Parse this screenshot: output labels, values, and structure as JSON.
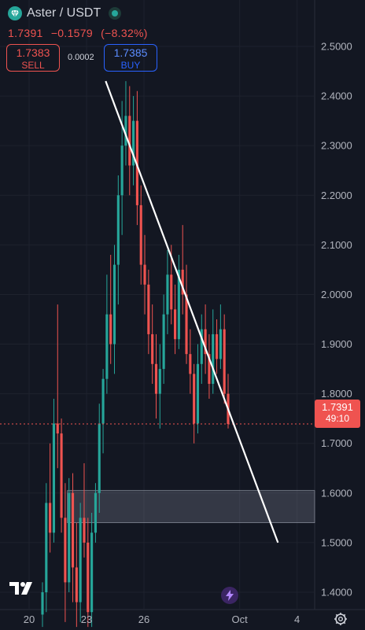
{
  "header": {
    "symbol": "Aster / USDT",
    "last_price": "1.7391",
    "change": "−0.1579",
    "change_pct": "(−8.32%)",
    "sell_price": "1.7383",
    "sell_label": "SELL",
    "spread": "0.0002",
    "buy_price": "1.7385",
    "buy_label": "BUY"
  },
  "price_tag": {
    "price": "1.7391",
    "countdown": "49:10"
  },
  "colors": {
    "background": "#131722",
    "up": "#26a69a",
    "down": "#ef5350",
    "buy": "#2962ff",
    "text": "#d1d4dc"
  },
  "icons": {
    "logo": "tradingview-logo-icon",
    "indicator": "bolt-icon",
    "settings": "gear-icon",
    "market_status": "market-open-dot-icon"
  },
  "chart_data": {
    "type": "candlestick",
    "title": "Aster / USDT",
    "ylim": [
      1.32,
      2.54
    ],
    "y_ticks": [
      "2.5000",
      "2.4000",
      "2.3000",
      "2.2000",
      "2.1000",
      "2.0000",
      "1.9000",
      "1.8000",
      "1.7000",
      "1.6000",
      "1.5000",
      "1.4000"
    ],
    "x_ticks": [
      "20",
      "23",
      "26",
      "Oct",
      "4"
    ],
    "last_price": 1.7391,
    "trendline": {
      "from": {
        "x": "Sep 24",
        "y": 2.43
      },
      "to": {
        "x": "Oct 3",
        "y": 1.5
      }
    },
    "support_zone": {
      "from_x": "Sep 22",
      "y_low": 1.54,
      "y_high": 1.605
    },
    "candles": [
      {
        "o": 1.355,
        "h": 1.42,
        "l": 1.33,
        "c": 1.4
      },
      {
        "o": 1.4,
        "h": 1.62,
        "l": 1.36,
        "c": 1.58
      },
      {
        "o": 1.58,
        "h": 1.7,
        "l": 1.48,
        "c": 1.52
      },
      {
        "o": 1.52,
        "h": 1.79,
        "l": 1.5,
        "c": 1.74
      },
      {
        "o": 1.74,
        "h": 1.98,
        "l": 1.65,
        "c": 1.72
      },
      {
        "o": 1.72,
        "h": 1.75,
        "l": 1.52,
        "c": 1.55
      },
      {
        "o": 1.55,
        "h": 1.62,
        "l": 1.34,
        "c": 1.42
      },
      {
        "o": 1.42,
        "h": 1.63,
        "l": 1.4,
        "c": 1.6
      },
      {
        "o": 1.6,
        "h": 1.64,
        "l": 1.38,
        "c": 1.45
      },
      {
        "o": 1.45,
        "h": 1.54,
        "l": 1.33,
        "c": 1.38
      },
      {
        "o": 1.38,
        "h": 1.58,
        "l": 1.34,
        "c": 1.55
      },
      {
        "o": 1.55,
        "h": 1.66,
        "l": 1.47,
        "c": 1.5
      },
      {
        "o": 1.5,
        "h": 1.55,
        "l": 1.33,
        "c": 1.36
      },
      {
        "o": 1.36,
        "h": 1.56,
        "l": 1.33,
        "c": 1.52
      },
      {
        "o": 1.52,
        "h": 1.62,
        "l": 1.5,
        "c": 1.6
      },
      {
        "o": 1.6,
        "h": 1.78,
        "l": 1.56,
        "c": 1.74
      },
      {
        "o": 1.74,
        "h": 1.85,
        "l": 1.68,
        "c": 1.83
      },
      {
        "o": 1.83,
        "h": 2.04,
        "l": 1.8,
        "c": 1.96
      },
      {
        "o": 1.96,
        "h": 2.08,
        "l": 1.86,
        "c": 1.9
      },
      {
        "o": 1.9,
        "h": 2.1,
        "l": 1.84,
        "c": 2.06
      },
      {
        "o": 2.06,
        "h": 2.24,
        "l": 1.98,
        "c": 2.2
      },
      {
        "o": 2.2,
        "h": 2.39,
        "l": 2.12,
        "c": 2.3
      },
      {
        "o": 2.3,
        "h": 2.43,
        "l": 2.26,
        "c": 2.36
      },
      {
        "o": 2.36,
        "h": 2.42,
        "l": 2.2,
        "c": 2.26
      },
      {
        "o": 2.26,
        "h": 2.4,
        "l": 2.22,
        "c": 2.35
      },
      {
        "o": 2.35,
        "h": 2.41,
        "l": 2.14,
        "c": 2.18
      },
      {
        "o": 2.18,
        "h": 2.22,
        "l": 2.02,
        "c": 2.06
      },
      {
        "o": 2.06,
        "h": 2.12,
        "l": 1.96,
        "c": 2.02
      },
      {
        "o": 2.02,
        "h": 2.05,
        "l": 1.88,
        "c": 1.92
      },
      {
        "o": 1.92,
        "h": 1.98,
        "l": 1.82,
        "c": 1.86
      },
      {
        "o": 1.86,
        "h": 1.92,
        "l": 1.75,
        "c": 1.8
      },
      {
        "o": 1.8,
        "h": 1.9,
        "l": 1.73,
        "c": 1.85
      },
      {
        "o": 1.85,
        "h": 2.0,
        "l": 1.82,
        "c": 1.96
      },
      {
        "o": 1.96,
        "h": 2.09,
        "l": 1.92,
        "c": 2.04
      },
      {
        "o": 2.04,
        "h": 2.1,
        "l": 1.94,
        "c": 1.97
      },
      {
        "o": 1.97,
        "h": 2.02,
        "l": 1.88,
        "c": 1.91
      },
      {
        "o": 1.91,
        "h": 2.08,
        "l": 1.89,
        "c": 2.05
      },
      {
        "o": 2.05,
        "h": 2.14,
        "l": 1.96,
        "c": 2.0
      },
      {
        "o": 2.0,
        "h": 2.06,
        "l": 1.86,
        "c": 1.88
      },
      {
        "o": 1.88,
        "h": 1.93,
        "l": 1.8,
        "c": 1.84
      },
      {
        "o": 1.84,
        "h": 1.86,
        "l": 1.7,
        "c": 1.74
      },
      {
        "o": 1.74,
        "h": 1.9,
        "l": 1.72,
        "c": 1.86
      },
      {
        "o": 1.86,
        "h": 1.96,
        "l": 1.82,
        "c": 1.93
      },
      {
        "o": 1.93,
        "h": 1.98,
        "l": 1.84,
        "c": 1.88
      },
      {
        "o": 1.88,
        "h": 1.92,
        "l": 1.79,
        "c": 1.82
      },
      {
        "o": 1.82,
        "h": 1.97,
        "l": 1.8,
        "c": 1.92
      },
      {
        "o": 1.92,
        "h": 1.95,
        "l": 1.84,
        "c": 1.87
      },
      {
        "o": 1.87,
        "h": 1.98,
        "l": 1.85,
        "c": 1.93
      },
      {
        "o": 1.93,
        "h": 1.96,
        "l": 1.78,
        "c": 1.8
      },
      {
        "o": 1.8,
        "h": 1.84,
        "l": 1.73,
        "c": 1.7391
      }
    ]
  }
}
